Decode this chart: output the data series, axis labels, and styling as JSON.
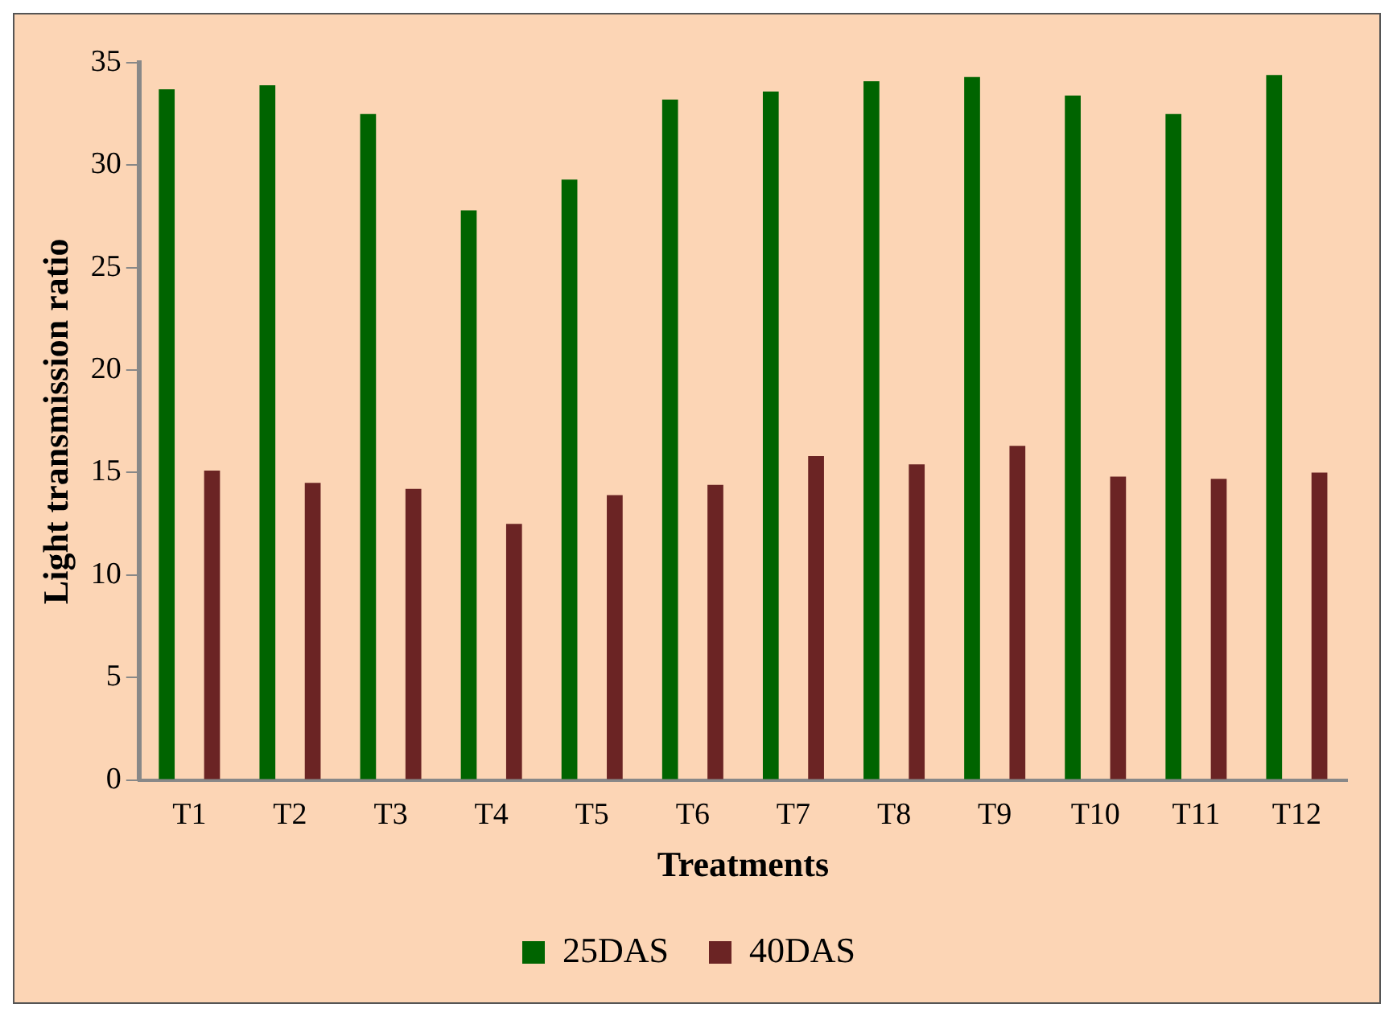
{
  "chart_data": {
    "type": "bar",
    "xlabel": "Treatments",
    "ylabel": "Light transmission ratio",
    "categories": [
      "T1",
      "T2",
      "T3",
      "T4",
      "T5",
      "T6",
      "T7",
      "T8",
      "T9",
      "T10",
      "T11",
      "T12"
    ],
    "series": [
      {
        "name": "25DAS",
        "color": "#006400",
        "values": [
          33.7,
          33.9,
          32.5,
          27.8,
          29.3,
          33.2,
          33.6,
          34.1,
          34.3,
          33.4,
          32.5,
          34.4
        ]
      },
      {
        "name": "40DAS",
        "color": "#6b2424",
        "values": [
          15.1,
          14.5,
          14.2,
          12.5,
          13.9,
          14.4,
          15.8,
          15.4,
          16.3,
          14.8,
          14.7,
          15.0
        ]
      }
    ],
    "ylim": [
      0,
      35
    ],
    "yticks": [
      0,
      5,
      10,
      15,
      20,
      25,
      30,
      35
    ],
    "grid": false,
    "legend": "bottom"
  }
}
